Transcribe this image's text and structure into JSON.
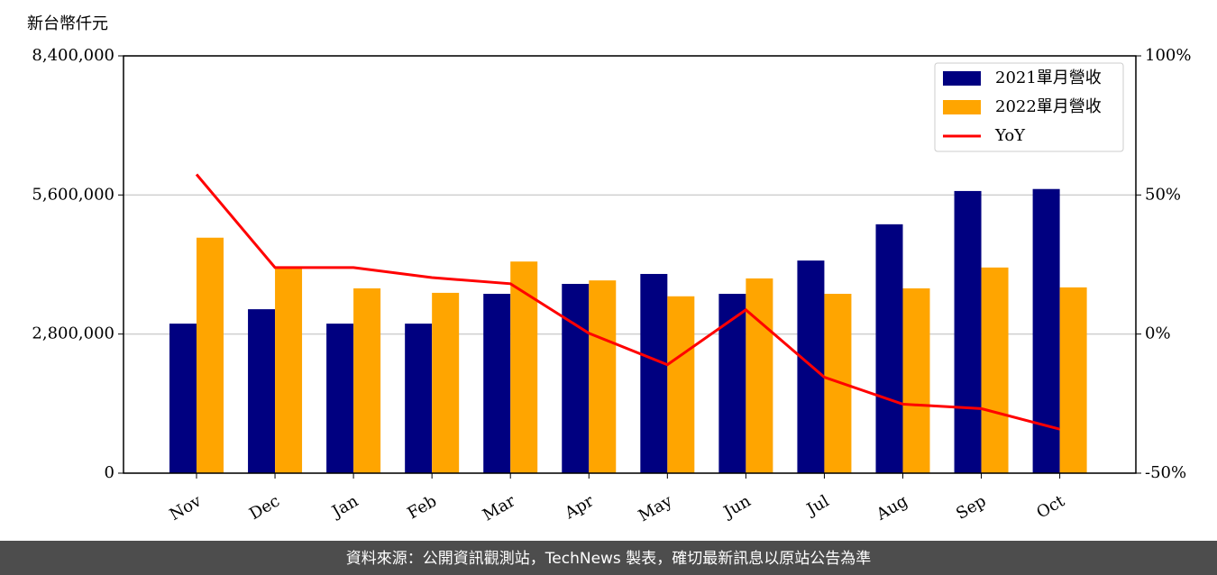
{
  "chart_data": {
    "type": "bar",
    "y_label": "新台幣仟元",
    "categories": [
      "Nov",
      "Dec",
      "Jan",
      "Feb",
      "Mar",
      "Apr",
      "May",
      "Jun",
      "Jul",
      "Aug",
      "Sep",
      "Oct"
    ],
    "series": [
      {
        "name": "2021單月營收",
        "color": "#000080",
        "values": [
          3010000,
          3300000,
          3010000,
          3010000,
          3610000,
          3810000,
          4010000,
          3610000,
          4280000,
          5010000,
          5680000,
          5720000
        ]
      },
      {
        "name": "2022單月營收",
        "color": "#ffa500",
        "values": [
          4740000,
          4140000,
          3720000,
          3630000,
          4260000,
          3880000,
          3560000,
          3920000,
          3610000,
          3720000,
          4140000,
          3740000
        ]
      },
      {
        "name": "YoY",
        "color": "#ff0000",
        "type": "line",
        "axis": "y2",
        "values": [
          57.4,
          23.9,
          23.9,
          20.3,
          18.1,
          0.3,
          -11.0,
          8.7,
          -15.5,
          -25.2,
          -26.8,
          -34.2
        ]
      }
    ],
    "ylim": [
      0,
      8400000
    ],
    "yticks": [
      0,
      {
        "value": 2800000,
        "label": "2,800,000"
      },
      {
        "value": 5600000,
        "label": "5,600,000"
      },
      {
        "value": 8400000,
        "label": "8,400,000"
      }
    ],
    "y2lim": [
      -50,
      100
    ],
    "y2ticks": [
      {
        "value": -50,
        "label": "-50%"
      },
      {
        "value": 0,
        "label": "0%"
      },
      {
        "value": 50,
        "label": "50%"
      },
      {
        "value": 100,
        "label": "100%"
      }
    ],
    "grid": true,
    "legend": "upper right"
  },
  "footer": "資料來源：公開資訊觀測站，TechNews 製表，確切最新訊息以原站公告為準"
}
